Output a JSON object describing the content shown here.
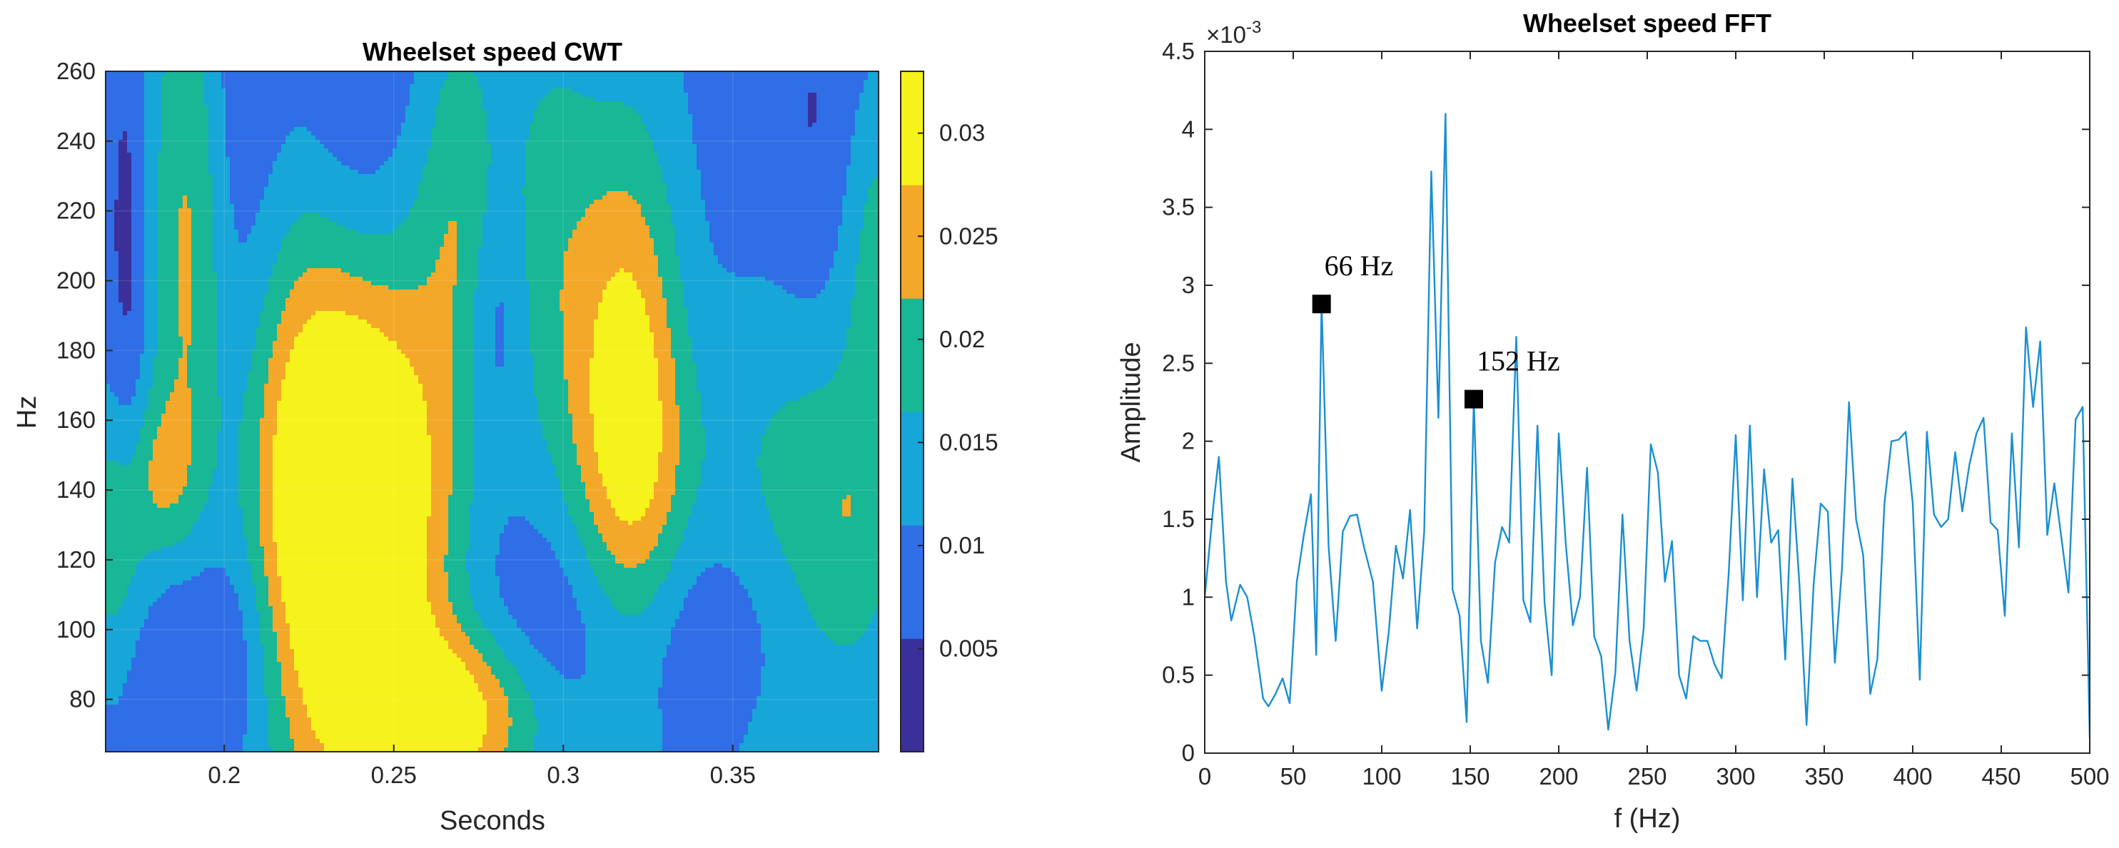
{
  "chart_data": [
    {
      "type": "heatmap",
      "subtype": "filled-contour",
      "title": "Wheelset speed CWT",
      "xlabel": "Seconds",
      "ylabel": "Hz",
      "xlim": [
        0.165,
        0.393
      ],
      "ylim": [
        65,
        260
      ],
      "xticks": [
        "0.2",
        "0.25",
        "0.3",
        "0.35"
      ],
      "xtick_values": [
        0.2,
        0.25,
        0.3,
        0.35
      ],
      "yticks": [
        "80",
        "100",
        "120",
        "140",
        "160",
        "180",
        "200",
        "220",
        "240",
        "260"
      ],
      "ytick_values": [
        80,
        100,
        120,
        140,
        160,
        180,
        200,
        220,
        240,
        260
      ],
      "colorbar": {
        "range": [
          0,
          0.033
        ],
        "ticks": [
          "0.005",
          "0.01",
          "0.015",
          "0.02",
          "0.025",
          "0.03"
        ],
        "tick_values": [
          0.005,
          0.01,
          0.015,
          0.02,
          0.025,
          0.03
        ],
        "levels": [
          {
            "lo": 0,
            "hi": 0.0055,
            "color": "#3b2f9a"
          },
          {
            "lo": 0.0055,
            "hi": 0.011,
            "color": "#2f6ee6"
          },
          {
            "lo": 0.011,
            "hi": 0.0165,
            "color": "#17a6d8"
          },
          {
            "lo": 0.0165,
            "hi": 0.022,
            "color": "#18b796"
          },
          {
            "lo": 0.022,
            "hi": 0.0275,
            "color": "#f4a829"
          },
          {
            "lo": 0.0275,
            "hi": 0.033,
            "color": "#f6f21b"
          }
        ]
      },
      "blobs": [
        {
          "t": 0.235,
          "f": 138,
          "st": 0.018,
          "sf": 52,
          "a": 0.031
        },
        {
          "t": 0.232,
          "f": 128,
          "st": 0.03,
          "sf": 85,
          "a": 0.0085
        },
        {
          "t": 0.32,
          "f": 163,
          "st": 0.012,
          "sf": 55,
          "a": 0.023
        },
        {
          "t": 0.318,
          "f": 175,
          "st": 0.02,
          "sf": 70,
          "a": 0.006
        },
        {
          "t": 0.19,
          "f": 215,
          "st": 0.009,
          "sf": 75,
          "a": 0.017
        },
        {
          "t": 0.168,
          "f": 120,
          "st": 0.008,
          "sf": 32,
          "a": 0.014
        },
        {
          "t": 0.182,
          "f": 145,
          "st": 0.006,
          "sf": 15,
          "a": 0.007
        },
        {
          "t": 0.268,
          "f": 75,
          "st": 0.02,
          "sf": 18,
          "a": 0.02
        },
        {
          "t": 0.37,
          "f": 125,
          "st": 0.024,
          "sf": 65,
          "a": 0.012
        },
        {
          "t": 0.386,
          "f": 125,
          "st": 0.012,
          "sf": 28,
          "a": 0.006
        },
        {
          "t": 0.392,
          "f": 215,
          "st": 0.008,
          "sf": 38,
          "a": 0.012
        },
        {
          "t": 0.27,
          "f": 230,
          "st": 0.008,
          "sf": 40,
          "a": 0.009
        },
        {
          "t": 0.295,
          "f": 220,
          "st": 0.01,
          "sf": 50,
          "a": 0.008
        },
        {
          "t": 0.262,
          "f": 150,
          "st": 0.012,
          "sf": 80,
          "a": 0.004
        }
      ],
      "holes": [
        {
          "t": 0.2,
          "f": 200,
          "st": 0.01,
          "sf": 90,
          "d": 0.008
        },
        {
          "t": 0.24,
          "f": 225,
          "st": 0.012,
          "sf": 50,
          "d": 0.007
        },
        {
          "t": 0.33,
          "f": 190,
          "st": 0.015,
          "sf": 40,
          "d": 0.006
        },
        {
          "t": 0.38,
          "f": 225,
          "st": 0.015,
          "sf": 40,
          "d": 0.006
        },
        {
          "t": 0.33,
          "f": 100,
          "st": 0.04,
          "sf": 25,
          "d": 0.009
        },
        {
          "t": 0.19,
          "f": 95,
          "st": 0.02,
          "sf": 22,
          "d": 0.008
        },
        {
          "t": 0.172,
          "f": 200,
          "st": 0.004,
          "sf": 50,
          "d": 0.006
        },
        {
          "t": 0.28,
          "f": 190,
          "st": 0.006,
          "sf": 25,
          "d": 0.006
        }
      ]
    },
    {
      "type": "line",
      "title": "Wheelset speed FFT",
      "xlabel": "f (Hz)",
      "ylabel": "Amplitude",
      "exponent_label": "×10",
      "exponent_power": "-3",
      "xlim": [
        0,
        500
      ],
      "ylim": [
        0,
        4.5
      ],
      "xticks": [
        "0",
        "50",
        "100",
        "150",
        "200",
        "250",
        "300",
        "350",
        "400",
        "450",
        "500"
      ],
      "xtick_values": [
        0,
        50,
        100,
        150,
        200,
        250,
        300,
        350,
        400,
        450,
        500
      ],
      "yticks": [
        "0",
        "0.5",
        "1",
        "1.5",
        "2",
        "2.5",
        "3",
        "3.5",
        "4",
        "4.5"
      ],
      "ytick_values": [
        0,
        0.5,
        1,
        1.5,
        2,
        2.5,
        3,
        3.5,
        4,
        4.5
      ],
      "series": [
        {
          "name": "Wheelset speed FFT",
          "color": "#1a8fd1",
          "x": [
            0,
            5,
            8,
            12,
            15,
            20,
            24,
            28,
            33,
            36,
            40,
            44,
            48,
            52,
            56,
            60,
            63,
            66,
            70,
            74,
            78,
            82,
            86,
            90,
            95,
            100,
            104,
            108,
            112,
            116,
            120,
            124,
            128,
            132,
            136,
            140,
            144,
            148,
            152,
            156,
            160,
            164,
            168,
            172,
            176,
            180,
            184,
            188,
            192,
            196,
            200,
            204,
            208,
            212,
            216,
            220,
            224,
            228,
            232,
            236,
            240,
            244,
            248,
            252,
            256,
            260,
            264,
            268,
            272,
            276,
            280,
            284,
            288,
            292,
            296,
            300,
            304,
            308,
            312,
            316,
            320,
            324,
            328,
            332,
            336,
            340,
            344,
            348,
            352,
            356,
            360,
            364,
            368,
            372,
            376,
            380,
            384,
            388,
            392,
            396,
            400,
            404,
            408,
            412,
            416,
            420,
            424,
            428,
            432,
            436,
            440,
            444,
            448,
            452,
            456,
            460,
            464,
            468,
            472,
            476,
            480,
            484,
            488,
            492,
            496,
            500
          ],
          "values": [
            1.0,
            1.6,
            1.9,
            1.1,
            0.85,
            1.08,
            1.0,
            0.75,
            0.35,
            0.3,
            0.38,
            0.48,
            0.32,
            1.1,
            1.4,
            1.66,
            0.63,
            2.88,
            1.32,
            0.72,
            1.42,
            1.52,
            1.53,
            1.32,
            1.1,
            0.4,
            0.78,
            1.33,
            1.12,
            1.56,
            0.8,
            1.42,
            3.73,
            2.15,
            4.1,
            1.05,
            0.88,
            0.2,
            2.27,
            0.72,
            0.45,
            1.22,
            1.45,
            1.35,
            2.67,
            0.98,
            0.84,
            2.1,
            0.96,
            0.5,
            2.05,
            1.34,
            0.82,
            1.0,
            1.83,
            0.75,
            0.62,
            0.15,
            0.52,
            1.53,
            0.72,
            0.4,
            0.8,
            1.98,
            1.8,
            1.1,
            1.36,
            0.5,
            0.35,
            0.75,
            0.72,
            0.72,
            0.57,
            0.48,
            1.15,
            2.04,
            0.98,
            2.1,
            1.0,
            1.82,
            1.35,
            1.43,
            0.6,
            1.76,
            1.08,
            0.18,
            1.08,
            1.6,
            1.55,
            0.58,
            1.18,
            2.25,
            1.5,
            1.27,
            0.38,
            0.6,
            1.6,
            2.0,
            2.01,
            2.06,
            1.6,
            0.47,
            2.06,
            1.53,
            1.45,
            1.5,
            1.93,
            1.55,
            1.85,
            2.05,
            2.15,
            1.48,
            1.43,
            0.88,
            2.05,
            1.32,
            2.73,
            2.22,
            2.64,
            1.4,
            1.73,
            1.38,
            1.03,
            2.14,
            2.22,
            0.1
          ]
        }
      ],
      "markers": [
        {
          "x": 66,
          "y": 2.88,
          "label": "66 Hz"
        },
        {
          "x": 152,
          "y": 2.27,
          "label": "152 Hz"
        }
      ]
    }
  ]
}
